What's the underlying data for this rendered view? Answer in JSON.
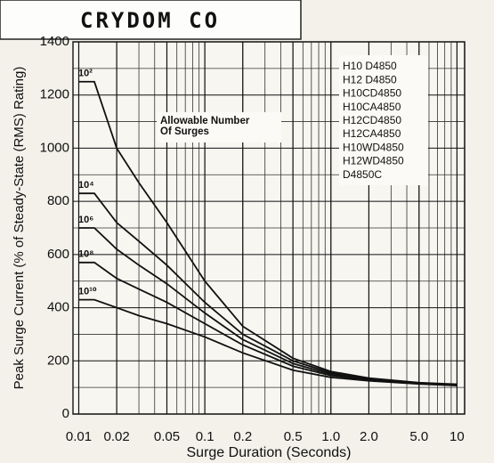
{
  "header": "CRYDOM CO",
  "chart_data": {
    "type": "line",
    "y_label": "Peak Surge Current (% of Steady-State (RMS) Rating)",
    "x_label": "Surge Duration (Seconds)",
    "annotation": [
      "Allowable Number",
      "Of Surges"
    ],
    "part_numbers": [
      "H10 D4850",
      "H12 D4850",
      "H10CD4850",
      "H10CA4850",
      "H12CD4850",
      "H12CA4850",
      "H10WD4850",
      "H12WD4850",
      "D4850C"
    ],
    "log_x": true,
    "grid": true,
    "xlim": [
      0.009,
      11.5
    ],
    "ylim": [
      0,
      1400
    ],
    "xticks": [
      0.01,
      0.02,
      0.05,
      0.1,
      0.2,
      0.5,
      {
        "value": 1,
        "label": "1.0"
      },
      {
        "value": 2,
        "label": "2.0"
      },
      {
        "value": 5,
        "label": "5.0"
      },
      10
    ],
    "yticks": [
      0,
      200,
      400,
      600,
      800,
      1000,
      1200,
      1400
    ],
    "x": [
      0.01,
      0.0133,
      0.02,
      0.03,
      0.05,
      0.1,
      0.2,
      0.5,
      1,
      2,
      5,
      10
    ],
    "series": [
      {
        "name": "10²",
        "color": "#111111",
        "values": [
          1250,
          1250,
          1000,
          870,
          720,
          500,
          330,
          210,
          160,
          135,
          118,
          112
        ]
      },
      {
        "name": "10⁴",
        "color": "#111111",
        "values": [
          830,
          830,
          720,
          650,
          560,
          420,
          300,
          200,
          155,
          133,
          117,
          110
        ]
      },
      {
        "name": "10⁶",
        "color": "#111111",
        "values": [
          700,
          700,
          620,
          560,
          490,
          380,
          280,
          190,
          150,
          130,
          116,
          109
        ]
      },
      {
        "name": "10⁸",
        "color": "#111111",
        "values": [
          570,
          570,
          510,
          470,
          420,
          340,
          260,
          180,
          145,
          128,
          115,
          108
        ]
      },
      {
        "name": "10¹⁰",
        "color": "#111111",
        "values": [
          430,
          430,
          400,
          370,
          340,
          290,
          230,
          165,
          138,
          125,
          113,
          107
        ]
      }
    ]
  }
}
